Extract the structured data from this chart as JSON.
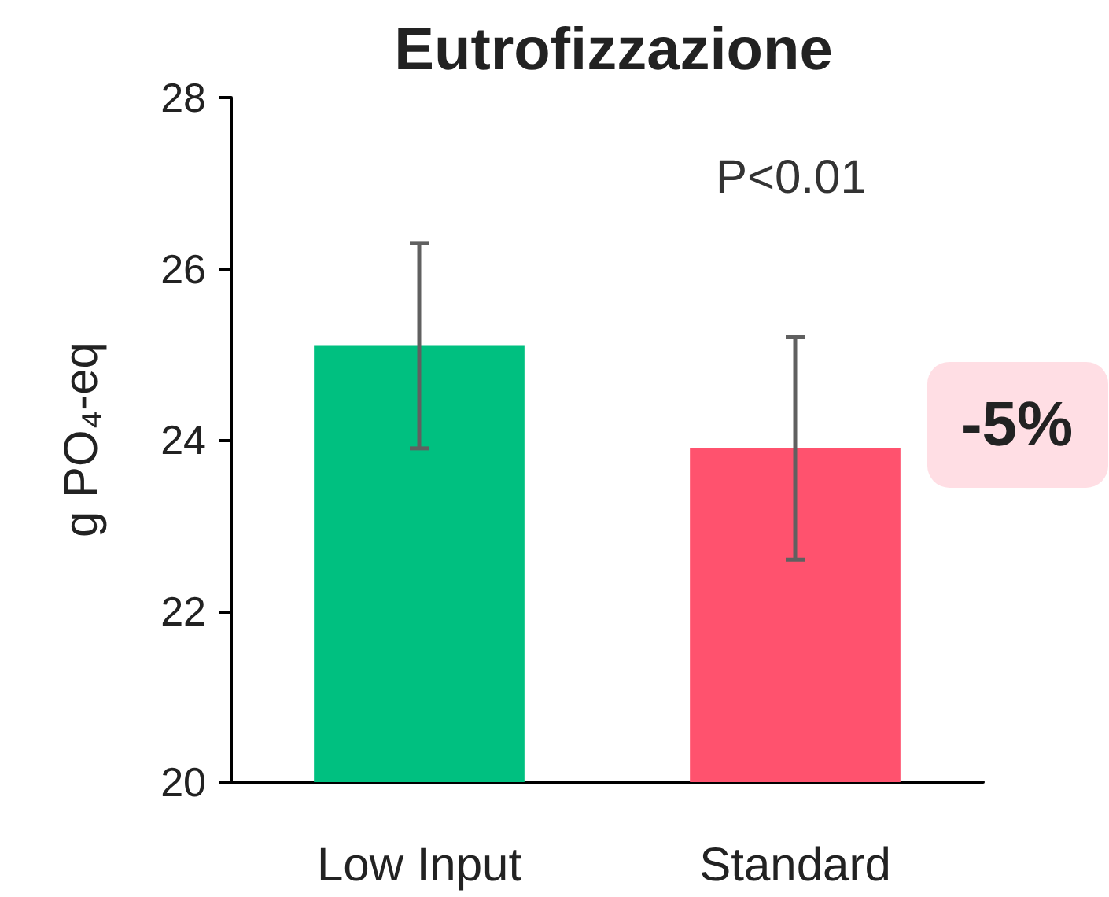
{
  "chart_data": {
    "type": "bar",
    "title": "Eutrofizzazione",
    "ylabel": "g PO₄-eq",
    "categories": [
      "Low Input",
      "Standard"
    ],
    "values": [
      25.1,
      23.9
    ],
    "colors": [
      "#00c080",
      "#ff526e"
    ],
    "errors": [
      [
        23.9,
        26.3
      ],
      [
        22.6,
        25.2
      ]
    ],
    "ylim": [
      20,
      28
    ],
    "yticks": [
      20,
      22,
      24,
      26,
      28
    ],
    "grid": false,
    "annotations": [
      "P<0.01",
      {
        "text": "-5%",
        "x": "Standard",
        "y": 23.9
      }
    ]
  }
}
